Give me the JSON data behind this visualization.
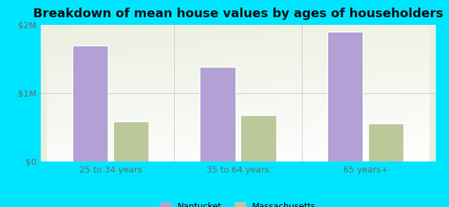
{
  "title": "Breakdown of mean house values by ages of householders",
  "categories": [
    "25 to 34 years",
    "35 to 64 years",
    "65 years+"
  ],
  "nantucket_values": [
    1700000,
    1380000,
    1900000
  ],
  "massachusetts_values": [
    590000,
    680000,
    560000
  ],
  "ylim": [
    0,
    2000000
  ],
  "yticks": [
    0,
    1000000,
    2000000
  ],
  "ytick_labels": [
    "$0",
    "$1M",
    "$2M"
  ],
  "nantucket_color": "#b3a0d4",
  "massachusetts_color": "#bcc89a",
  "background_outer": "#00e5ff",
  "title_fontsize": 13,
  "legend_entries": [
    "Nantucket",
    "Massachusetts"
  ],
  "bar_width": 0.28,
  "group_positions": [
    0,
    1,
    2
  ]
}
